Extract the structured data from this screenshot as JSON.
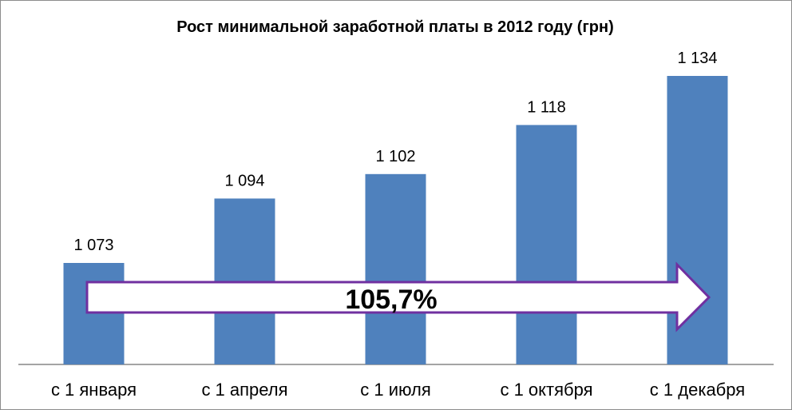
{
  "chart_data": {
    "type": "bar",
    "title": "Рост минимальной заработной платы в 2012 году (грн)",
    "categories": [
      "с 1 января",
      "с 1 апреля",
      "с 1 июля",
      "с 1 октября",
      "с 1 декабря"
    ],
    "values": [
      1073,
      1094,
      1102,
      1118,
      1134
    ],
    "data_labels": [
      "1 073",
      "1 094",
      "1 102",
      "1 118",
      "1 134"
    ],
    "grid": false,
    "legend": "none",
    "bar_color": "#4f81bd",
    "annotation": {
      "text": "105,7%",
      "shape": "arrow",
      "border_color": "#7030a0",
      "fill_color": "#ffffff"
    }
  }
}
